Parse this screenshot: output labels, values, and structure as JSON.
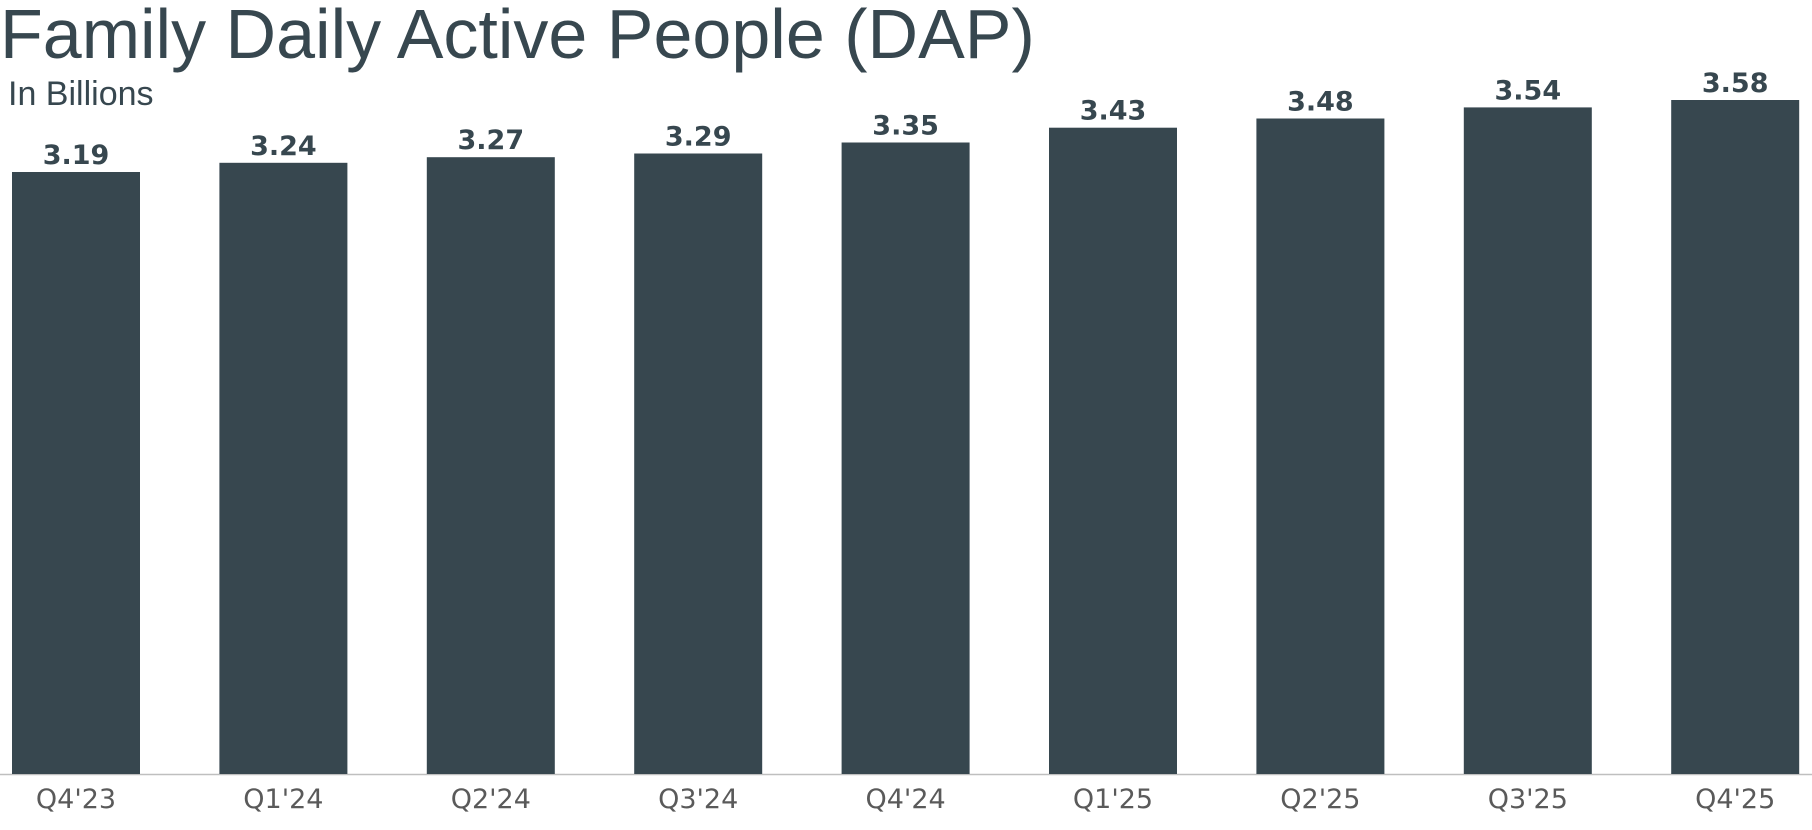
{
  "chart_data": {
    "type": "bar",
    "title": "Family Daily Active People (DAP)",
    "subtitle": "In Billions",
    "xlabel": "",
    "ylabel": "",
    "categories": [
      "Q4'23",
      "Q1'24",
      "Q2'24",
      "Q3'24",
      "Q4'24",
      "Q1'25",
      "Q2'25",
      "Q3'25",
      "Q4'25"
    ],
    "values": [
      3.19,
      3.24,
      3.27,
      3.29,
      3.35,
      3.43,
      3.48,
      3.54,
      3.58
    ],
    "value_labels": [
      "3.19",
      "3.24",
      "3.27",
      "3.29",
      "3.35",
      "3.43",
      "3.48",
      "3.54",
      "3.58"
    ],
    "grid": false,
    "legend": "none",
    "bar_color": "#37474f",
    "axis_color": "#bfbfbf"
  }
}
